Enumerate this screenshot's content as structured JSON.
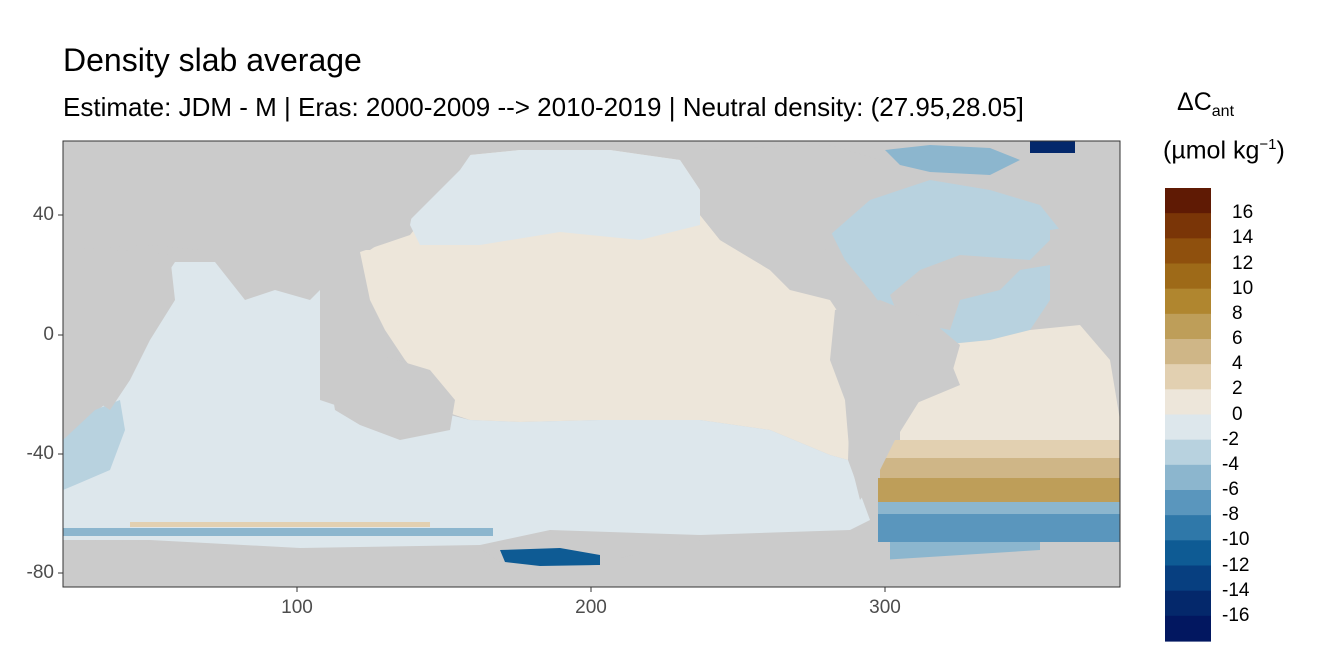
{
  "title": "Density slab average",
  "subtitle": "Estimate: JDM - M | Eras: 2000-2009 --> 2010-2019 | Neutral density: (27.95,28.05]",
  "axes": {
    "x_ticks": [
      "100",
      "200",
      "300"
    ],
    "y_ticks": [
      "40",
      "0",
      "-40",
      "-80"
    ],
    "xlim": [
      20,
      380
    ],
    "ylim": [
      -85,
      65
    ]
  },
  "legend": {
    "title_symbol": "ΔC",
    "title_subscript": "ant",
    "unit_prefix": "(µmol kg",
    "unit_exponent": "−1",
    "unit_suffix": ")",
    "labels": [
      "16",
      "14",
      "12",
      "10",
      "8",
      "6",
      "4",
      "2",
      "0",
      "-2",
      "-4",
      "-6",
      "-8",
      "-10",
      "-12",
      "-14",
      "-16"
    ],
    "colors": [
      "#5f1a04",
      "#7a3507",
      "#8f500d",
      "#9e6a18",
      "#b0862f",
      "#be9e59",
      "#cfb687",
      "#e2d0b1",
      "#ede6da",
      "#dde7ec",
      "#b8d2df",
      "#8cb6ce",
      "#5a96bd",
      "#2f78a9",
      "#0e5b94",
      "#073f80",
      "#04286b",
      "#021760"
    ]
  },
  "colors": {
    "land": "#cbcbcb",
    "missing": "#ffffff",
    "panel_border": "#333333",
    "near_zero_neg": "#dde7ec",
    "near_zero_pos": "#ede6da"
  }
}
